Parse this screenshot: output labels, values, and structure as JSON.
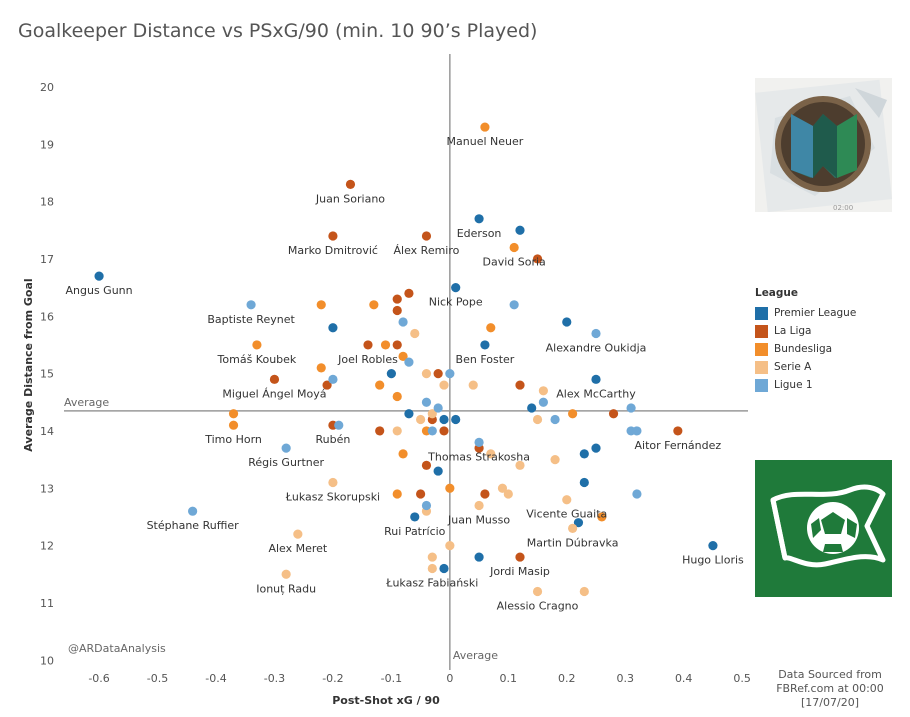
{
  "chart_data": {
    "type": "scatter",
    "title": "Goalkeeper Distance vs PSxG/90 (min. 10 90’s Played)",
    "xlabel": "Post-Shot xG / 90",
    "ylabel": "Average Distance from Goal",
    "xlim": [
      -0.66,
      0.51
    ],
    "ylim": [
      9.9,
      20.4
    ],
    "xticks": [
      -0.6,
      -0.5,
      -0.4,
      -0.3,
      -0.2,
      -0.1,
      0,
      0.1,
      0.2,
      0.3,
      0.4,
      0.5
    ],
    "xtick_labels": [
      "-0.6",
      "-0.5",
      "-0.4",
      "-0.3",
      "-0.2",
      "-0.1",
      "0",
      "0.1",
      "0.2",
      "0.3",
      "0.4",
      "0.5"
    ],
    "yticks": [
      10,
      11,
      12,
      13,
      14,
      15,
      16,
      17,
      18,
      19,
      20
    ],
    "ytick_labels": [
      "10",
      "11",
      "12",
      "13",
      "14",
      "15",
      "16",
      "17",
      "18",
      "19",
      "20"
    ],
    "reference_lines": {
      "x": {
        "value": 0,
        "label": "Average"
      },
      "y": {
        "value": 14.35,
        "label": "Average"
      }
    },
    "watermark": "@ARDataAnalysis",
    "legend": {
      "title": "League",
      "position": "right",
      "items": [
        {
          "name": "Premier League",
          "color": "#1f6fa8"
        },
        {
          "name": "La Liga",
          "color": "#c4541a"
        },
        {
          "name": "Bundesliga",
          "color": "#f28e2b"
        },
        {
          "name": "Serie A",
          "color": "#f5bf87"
        },
        {
          "name": "Ligue 1",
          "color": "#6fa8d6"
        }
      ]
    },
    "series": [
      {
        "name": "Premier League",
        "color": "#1f6fa8",
        "points": [
          {
            "x": -0.6,
            "y": 16.7,
            "label": "Angus Gunn"
          },
          {
            "x": 0.05,
            "y": 17.7,
            "label": "Ederson"
          },
          {
            "x": 0.12,
            "y": 17.5
          },
          {
            "x": 0.01,
            "y": 16.5,
            "label": "Nick Pope"
          },
          {
            "x": -0.2,
            "y": 15.8
          },
          {
            "x": 0.06,
            "y": 15.5,
            "label": "Ben Foster"
          },
          {
            "x": 0.2,
            "y": 15.9
          },
          {
            "x": -0.1,
            "y": 15.0
          },
          {
            "x": 0.25,
            "y": 14.9,
            "label": "Alex McCarthy"
          },
          {
            "x": 0.14,
            "y": 14.4
          },
          {
            "x": -0.07,
            "y": 14.3
          },
          {
            "x": -0.01,
            "y": 14.2
          },
          {
            "x": 0.01,
            "y": 14.2
          },
          {
            "x": 0.23,
            "y": 13.6
          },
          {
            "x": 0.25,
            "y": 13.7
          },
          {
            "x": -0.02,
            "y": 13.3
          },
          {
            "x": 0.23,
            "y": 13.1
          },
          {
            "x": -0.06,
            "y": 12.5,
            "label": "Rui Patrício"
          },
          {
            "x": 0.22,
            "y": 12.4
          },
          {
            "x": 0.45,
            "y": 12.0,
            "label": "Hugo Lloris"
          },
          {
            "x": -0.01,
            "y": 11.6
          },
          {
            "x": 0.05,
            "y": 11.8
          }
        ]
      },
      {
        "name": "La Liga",
        "color": "#c4541a",
        "points": [
          {
            "x": -0.17,
            "y": 18.3,
            "label": "Juan Soriano"
          },
          {
            "x": -0.2,
            "y": 17.4,
            "label": "Marko Dmitrović"
          },
          {
            "x": -0.04,
            "y": 17.4,
            "label": "Álex Remiro"
          },
          {
            "x": 0.15,
            "y": 17.0
          },
          {
            "x": -0.07,
            "y": 16.4
          },
          {
            "x": -0.09,
            "y": 16.3
          },
          {
            "x": -0.09,
            "y": 16.1
          },
          {
            "x": -0.14,
            "y": 15.5,
            "label": "Joel Robles"
          },
          {
            "x": -0.09,
            "y": 15.5
          },
          {
            "x": -0.3,
            "y": 14.9,
            "label": "Miguel Ángel Moyá"
          },
          {
            "x": -0.21,
            "y": 14.8
          },
          {
            "x": -0.02,
            "y": 15.0
          },
          {
            "x": 0.12,
            "y": 14.8
          },
          {
            "x": -0.2,
            "y": 14.1,
            "label": "Rubén"
          },
          {
            "x": -0.12,
            "y": 14.0
          },
          {
            "x": -0.03,
            "y": 14.2
          },
          {
            "x": -0.01,
            "y": 14.0
          },
          {
            "x": 0.28,
            "y": 14.3
          },
          {
            "x": 0.39,
            "y": 14.0,
            "label": "Aitor Fernández"
          },
          {
            "x": 0.05,
            "y": 13.7
          },
          {
            "x": -0.04,
            "y": 13.4
          },
          {
            "x": -0.05,
            "y": 12.9
          },
          {
            "x": 0.06,
            "y": 12.9
          },
          {
            "x": 0.12,
            "y": 11.8,
            "label": "Jordi Masip"
          }
        ]
      },
      {
        "name": "Bundesliga",
        "color": "#f28e2b",
        "points": [
          {
            "x": 0.06,
            "y": 19.3,
            "label": "Manuel Neuer"
          },
          {
            "x": 0.11,
            "y": 17.2,
            "label": "David Soria"
          },
          {
            "x": -0.22,
            "y": 16.2
          },
          {
            "x": -0.13,
            "y": 16.2
          },
          {
            "x": 0.07,
            "y": 15.8
          },
          {
            "x": -0.33,
            "y": 15.5,
            "label": "Tomáš Koubek"
          },
          {
            "x": -0.11,
            "y": 15.5
          },
          {
            "x": -0.08,
            "y": 15.3
          },
          {
            "x": -0.22,
            "y": 15.1
          },
          {
            "x": -0.12,
            "y": 14.8
          },
          {
            "x": -0.09,
            "y": 14.6
          },
          {
            "x": -0.37,
            "y": 14.3
          },
          {
            "x": -0.37,
            "y": 14.1,
            "label": "Timo Horn"
          },
          {
            "x": -0.04,
            "y": 14.0
          },
          {
            "x": 0.21,
            "y": 14.3
          },
          {
            "x": -0.08,
            "y": 13.6
          },
          {
            "x": 0.0,
            "y": 13.0
          },
          {
            "x": -0.09,
            "y": 12.9
          },
          {
            "x": 0.26,
            "y": 12.5
          }
        ]
      },
      {
        "name": "Serie A",
        "color": "#f5bf87",
        "points": [
          {
            "x": -0.06,
            "y": 15.7
          },
          {
            "x": -0.04,
            "y": 15.0
          },
          {
            "x": -0.01,
            "y": 14.8
          },
          {
            "x": 0.04,
            "y": 14.8
          },
          {
            "x": 0.16,
            "y": 14.7
          },
          {
            "x": -0.05,
            "y": 14.2
          },
          {
            "x": -0.03,
            "y": 14.3
          },
          {
            "x": -0.09,
            "y": 14.0
          },
          {
            "x": 0.15,
            "y": 14.2
          },
          {
            "x": 0.07,
            "y": 13.6
          },
          {
            "x": 0.18,
            "y": 13.5
          },
          {
            "x": 0.12,
            "y": 13.4
          },
          {
            "x": -0.2,
            "y": 13.1,
            "label": "Łukasz Skorupski"
          },
          {
            "x": 0.09,
            "y": 13.0
          },
          {
            "x": 0.1,
            "y": 12.9
          },
          {
            "x": 0.05,
            "y": 12.7,
            "label": "Juan Musso"
          },
          {
            "x": 0.2,
            "y": 12.8,
            "label": "Vicente Guaita"
          },
          {
            "x": -0.04,
            "y": 12.6
          },
          {
            "x": -0.26,
            "y": 12.2,
            "label": "Alex Meret"
          },
          {
            "x": 0.0,
            "y": 12.0
          },
          {
            "x": -0.03,
            "y": 11.8
          },
          {
            "x": -0.03,
            "y": 11.6,
            "label": "Łukasz Fabiański"
          },
          {
            "x": -0.28,
            "y": 11.5,
            "label": "Ionuț Radu"
          },
          {
            "x": 0.15,
            "y": 11.2,
            "label": "Alessio Cragno"
          },
          {
            "x": 0.23,
            "y": 11.2
          },
          {
            "x": 0.21,
            "y": 12.3,
            "label": "Martin Dúbravka"
          }
        ]
      },
      {
        "name": "Ligue 1",
        "color": "#6fa8d6",
        "points": [
          {
            "x": -0.34,
            "y": 16.2,
            "label": "Baptiste Reynet"
          },
          {
            "x": 0.11,
            "y": 16.2
          },
          {
            "x": -0.08,
            "y": 15.9
          },
          {
            "x": 0.25,
            "y": 15.7,
            "label": "Alexandre Oukidja"
          },
          {
            "x": -0.07,
            "y": 15.2
          },
          {
            "x": 0.0,
            "y": 15.0
          },
          {
            "x": -0.2,
            "y": 14.9
          },
          {
            "x": -0.04,
            "y": 14.5
          },
          {
            "x": -0.02,
            "y": 14.4
          },
          {
            "x": 0.16,
            "y": 14.5
          },
          {
            "x": 0.31,
            "y": 14.4
          },
          {
            "x": 0.18,
            "y": 14.2
          },
          {
            "x": -0.19,
            "y": 14.1
          },
          {
            "x": -0.03,
            "y": 14.0
          },
          {
            "x": 0.31,
            "y": 14.0
          },
          {
            "x": 0.32,
            "y": 14.0
          },
          {
            "x": 0.05,
            "y": 13.8,
            "label": "Thomas Strakosha"
          },
          {
            "x": -0.28,
            "y": 13.7,
            "label": "Régis Gurtner"
          },
          {
            "x": 0.32,
            "y": 12.9
          },
          {
            "x": -0.44,
            "y": 12.6,
            "label": "Stéphane Ruffier"
          },
          {
            "x": -0.04,
            "y": 12.7
          }
        ]
      }
    ]
  },
  "source": {
    "line1": "Data Sourced from",
    "line2": "FBRef.com at 00:00",
    "line3": "[17/07/20]"
  },
  "logos": {
    "top": "ar-data-analysis-logo",
    "bottom": "football-flag-logo"
  }
}
